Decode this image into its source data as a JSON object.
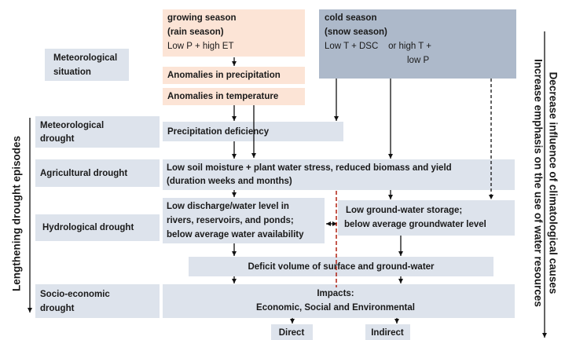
{
  "left_labels": [
    [
      "Meteorological",
      "situation"
    ],
    [
      "Meteorological",
      "drought"
    ],
    [
      "Agricultural drought"
    ],
    [
      "Hydrological drought"
    ],
    [
      "Socio-economic",
      "drought"
    ]
  ],
  "growing_season": [
    "growing season",
    "(rain season)",
    "Low P + high ET"
  ],
  "anomalies": [
    "Anomalies in precipitation",
    "Anomalies in temperature"
  ],
  "cold_season": [
    "cold season",
    "(snow season)",
    "Low T + DSC    or high T +",
    "low P"
  ],
  "precipitation_deficiency": "Precipitation deficiency",
  "agricultural": [
    "Low soil moisture + plant water stress, reduced biomass and yield",
    "(duration weeks and months)"
  ],
  "hydrological_surface": [
    "Low discharge/water level in",
    "rivers, reservoirs, and ponds;",
    "below average water availability"
  ],
  "hydrological_ground": [
    "Low ground-water storage;",
    "below average groundwater level"
  ],
  "deficit": "Deficit volume of surface and ground-water",
  "impacts": [
    "Impacts:",
    "Economic, Social and Environmental"
  ],
  "outcomes": [
    "Direct",
    "Indirect"
  ],
  "left_axis": "Lengthening drought episodes",
  "right_axis": [
    "Decrease influence of climatological causes",
    "Increase emphasis on the use of water resources"
  ]
}
